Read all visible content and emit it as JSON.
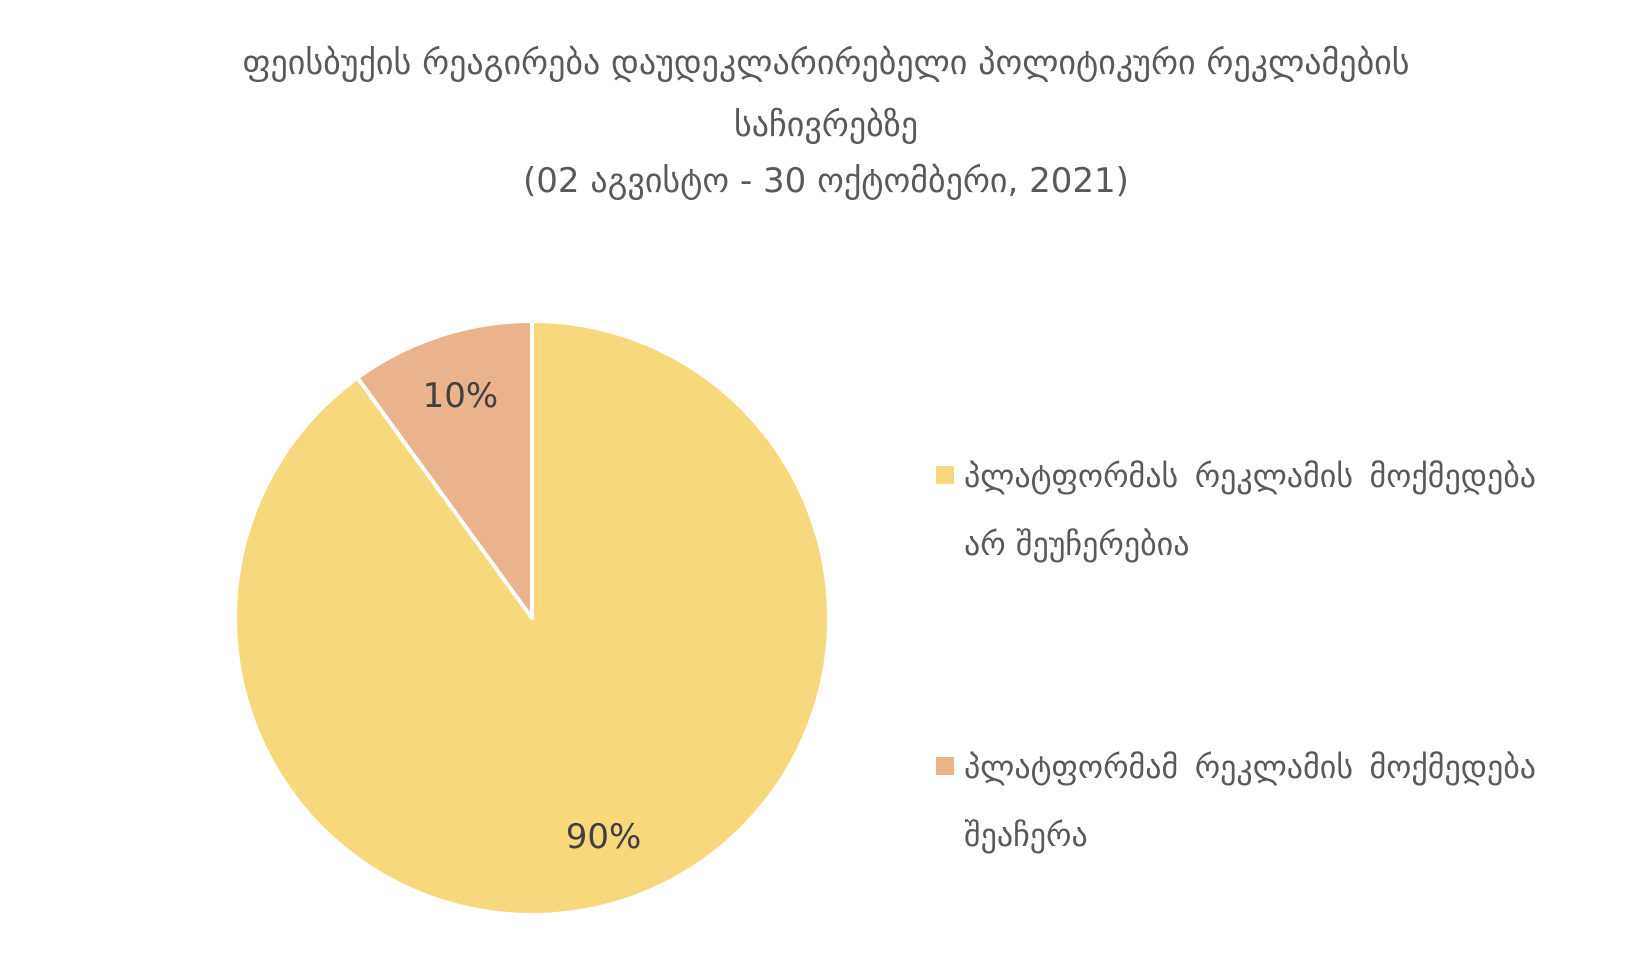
{
  "chart_data": {
    "type": "pie",
    "title": "ფეისბუქის რეაგირება დაუდეკლარირებელი პოლიტიკური რეკლამების საჩივრებზე",
    "subtitle": "(02 აგვისტო - 30 ოქტომბერი, 2021)",
    "categories": [
      "პლატფორმას რეკლამის მოქმედება არ შეუჩერებია",
      "პლატფორმამ რეკლამის მოქმედება შეაჩერა"
    ],
    "values": [
      90,
      10
    ],
    "value_labels": [
      "90%",
      "10%"
    ],
    "colors": [
      "#f8d87c",
      "#ebb38b"
    ],
    "legend": "right"
  }
}
